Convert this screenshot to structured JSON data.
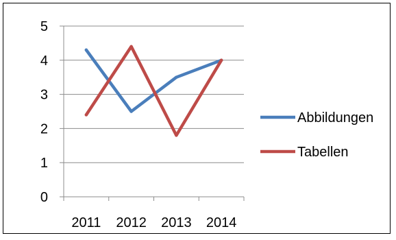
{
  "chart_data": {
    "type": "line",
    "categories": [
      "2011",
      "2012",
      "2013",
      "2014"
    ],
    "series": [
      {
        "name": "Abbildungen",
        "values": [
          4.3,
          2.5,
          3.5,
          4.0
        ],
        "color": "#4a7ebb"
      },
      {
        "name": "Tabellen",
        "values": [
          2.4,
          4.4,
          1.8,
          4.0
        ],
        "color": "#be4b48"
      }
    ],
    "ylim": [
      0,
      5
    ],
    "yticks": [
      "0",
      "1",
      "2",
      "3",
      "4",
      "5"
    ],
    "grid": true,
    "legend_position": "right",
    "title": "",
    "xlabel": "",
    "ylabel": ""
  }
}
